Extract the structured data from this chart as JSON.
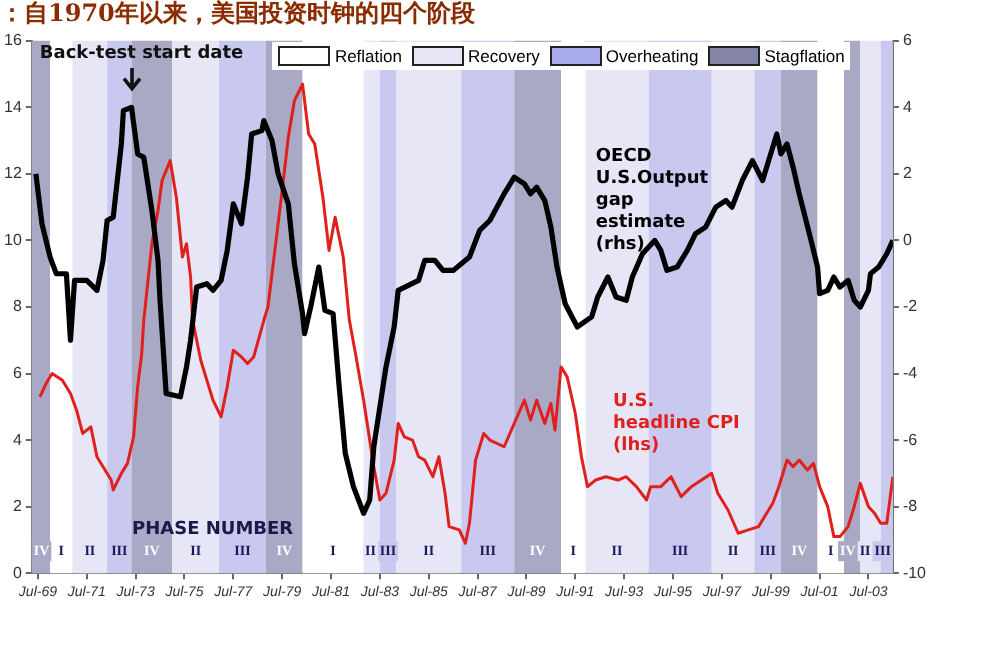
{
  "chart_data": {
    "type": "line",
    "title": "：自1970年以来，美国投资时钟的四个阶段",
    "xlim": [
      "1969-04",
      "2004-07"
    ],
    "xticks": [
      {
        "value": "1969-07",
        "label": "Jul-69"
      },
      {
        "value": "1971-07",
        "label": "Jul-71"
      },
      {
        "value": "1973-07",
        "label": "Jul-73"
      },
      {
        "value": "1975-07",
        "label": "Jul-75"
      },
      {
        "value": "1977-07",
        "label": "Jul-77"
      },
      {
        "value": "1979-07",
        "label": "Jul-79"
      },
      {
        "value": "1981-07",
        "label": "Jul-81"
      },
      {
        "value": "1983-07",
        "label": "Jul-83"
      },
      {
        "value": "1985-07",
        "label": "Jul-85"
      },
      {
        "value": "1987-07",
        "label": "Jul-87"
      },
      {
        "value": "1989-07",
        "label": "Jul-89"
      },
      {
        "value": "1991-07",
        "label": "Jul-91"
      },
      {
        "value": "1993-07",
        "label": "Jul-93"
      },
      {
        "value": "1995-07",
        "label": "Jul-95"
      },
      {
        "value": "1997-07",
        "label": "Jul-97"
      },
      {
        "value": "1999-07",
        "label": "Jul-99"
      },
      {
        "value": "2001-07",
        "label": "Jul-01"
      },
      {
        "value": "2003-07",
        "label": "Jul-03"
      }
    ],
    "ylim": [
      0,
      16
    ],
    "yticks": [
      0,
      2,
      4,
      6,
      8,
      10,
      12,
      14,
      16
    ],
    "y2lim": [
      -10,
      6
    ],
    "y2ticks": [
      -10,
      -8,
      -6,
      -4,
      -2,
      0,
      2,
      4,
      6
    ],
    "series": [
      {
        "name": "OECD U.S.Output gap estimate (rhs)",
        "color": "#000000",
        "axis": "y2",
        "x": [
          "1969-06",
          "1969-09",
          "1970-01",
          "1970-04",
          "1970-09",
          "1970-11",
          "1971-01",
          "1971-07",
          "1971-12",
          "1972-03",
          "1972-05",
          "1972-08",
          "1972-12",
          "1973-01",
          "1973-05",
          "1973-08",
          "1973-11",
          "1974-03",
          "1974-06",
          "1974-07",
          "1974-10",
          "1975-05",
          "1975-08",
          "1975-10",
          "1976-01",
          "1976-06",
          "1976-09",
          "1977-01",
          "1977-04",
          "1977-07",
          "1977-11",
          "1978-02",
          "1978-04",
          "1978-09",
          "1978-10",
          "1979-02",
          "1979-05",
          "1979-10",
          "1980-01",
          "1980-05",
          "1980-06",
          "1980-09",
          "1981-01",
          "1981-04",
          "1981-08",
          "1981-11",
          "1982-02",
          "1982-06",
          "1982-11",
          "1983-02",
          "1983-04",
          "1983-07",
          "1983-10",
          "1984-02",
          "1984-04",
          "1985-02",
          "1985-05",
          "1985-10",
          "1986-02",
          "1986-07",
          "1987-03",
          "1987-08",
          "1988-01",
          "1988-08",
          "1989-01",
          "1989-06",
          "1989-09",
          "1989-12",
          "1990-04",
          "1990-07",
          "1990-10",
          "1991-02",
          "1991-08",
          "1992-03",
          "1992-06",
          "1992-11",
          "1993-03",
          "1993-08",
          "1993-11",
          "1994-04",
          "1994-10",
          "1995-01",
          "1995-04",
          "1995-09",
          "1996-02",
          "1996-06",
          "1996-11",
          "1997-04",
          "1997-09",
          "1997-12",
          "1998-05",
          "1998-10",
          "1999-03",
          "1999-06",
          "1999-10",
          "1999-12",
          "2000-03",
          "2000-06",
          "2000-09",
          "2001-02",
          "2001-06",
          "2001-07",
          "2001-11",
          "2002-02",
          "2002-05",
          "2002-09",
          "2002-12",
          "2003-03",
          "2003-07",
          "2003-08",
          "2003-12",
          "2004-04",
          "2004-07"
        ],
        "values": [
          2.0,
          0.5,
          -0.5,
          -1.0,
          -1.0,
          -3.0,
          -1.2,
          -1.2,
          -1.5,
          -0.6,
          0.6,
          0.7,
          2.9,
          3.9,
          4.0,
          2.6,
          2.5,
          0.9,
          -0.6,
          -1.8,
          -4.6,
          -4.7,
          -3.8,
          -3.0,
          -1.4,
          -1.3,
          -1.5,
          -1.2,
          -0.3,
          1.1,
          0.5,
          1.9,
          3.2,
          3.3,
          3.6,
          3.0,
          2.0,
          1.1,
          -0.7,
          -2.2,
          -2.8,
          -2.0,
          -0.8,
          -2.1,
          -2.2,
          -4.4,
          -6.4,
          -7.4,
          -8.2,
          -7.8,
          -6.2,
          -5.0,
          -3.8,
          -2.6,
          -1.5,
          -1.2,
          -0.6,
          -0.6,
          -0.9,
          -0.9,
          -0.5,
          0.3,
          0.6,
          1.4,
          1.9,
          1.7,
          1.4,
          1.6,
          1.2,
          0.4,
          -0.8,
          -1.9,
          -2.6,
          -2.3,
          -1.7,
          -1.1,
          -1.7,
          -1.8,
          -1.1,
          -0.4,
          0.0,
          -0.3,
          -0.9,
          -0.8,
          -0.3,
          0.2,
          0.4,
          1.0,
          1.2,
          1.0,
          1.8,
          2.4,
          1.8,
          2.4,
          3.2,
          2.6,
          2.9,
          2.2,
          1.4,
          0.2,
          -0.8,
          -1.6,
          -1.5,
          -1.1,
          -1.4,
          -1.2,
          -1.8,
          -2.0,
          -1.5,
          -1.0,
          -0.8,
          -0.4,
          0.0
        ]
      },
      {
        "name": "U.S. headline CPI (lhs)",
        "color": "#e0201c",
        "x": [
          "1969-08",
          "1969-11",
          "1970-02",
          "1970-07",
          "1970-11",
          "1971-02",
          "1971-05",
          "1971-09",
          "1971-12",
          "1972-03",
          "1972-07",
          "1972-08",
          "1972-12",
          "1973-03",
          "1973-06",
          "1973-08",
          "1973-10",
          "1973-11",
          "1974-03",
          "1974-06",
          "1974-08",
          "1974-12",
          "1975-03",
          "1975-06",
          "1975-08",
          "1975-10",
          "1975-11",
          "1976-03",
          "1976-06",
          "1976-09",
          "1977-01",
          "1977-04",
          "1977-07",
          "1977-11",
          "1978-02",
          "1978-05",
          "1978-10",
          "1978-12",
          "1979-03",
          "1979-07",
          "1979-10",
          "1980-01",
          "1980-05",
          "1980-08",
          "1980-11",
          "1981-03",
          "1981-06",
          "1981-09",
          "1982-01",
          "1982-04",
          "1982-07",
          "1982-11",
          "1983-02",
          "1983-04",
          "1983-07",
          "1983-10",
          "1984-02",
          "1984-04",
          "1984-07",
          "1984-11",
          "1985-02",
          "1985-05",
          "1985-09",
          "1985-12",
          "1986-03",
          "1986-05",
          "1986-10",
          "1987-01",
          "1987-03",
          "1987-06",
          "1987-10",
          "1988-01",
          "1988-08",
          "1989-01",
          "1989-06",
          "1989-09",
          "1989-12",
          "1990-04",
          "1990-07",
          "1990-09",
          "1990-12",
          "1991-03",
          "1991-07",
          "1991-10",
          "1992-01",
          "1992-05",
          "1992-10",
          "1993-04",
          "1993-08",
          "1994-01",
          "1994-06",
          "1994-08",
          "1995-01",
          "1995-06",
          "1995-11",
          "1996-04",
          "1996-09",
          "1997-02",
          "1997-05",
          "1997-10",
          "1998-03",
          "1998-08",
          "1999-01",
          "1999-05",
          "1999-08",
          "1999-11",
          "2000-03",
          "2000-06",
          "2000-09",
          "2001-01",
          "2001-04",
          "2001-07",
          "2001-11",
          "2002-02",
          "2002-05",
          "2002-09",
          "2002-12",
          "2003-03",
          "2003-07",
          "2003-10",
          "2004-01",
          "2004-04",
          "2004-07"
        ],
        "values": [
          5.3,
          5.7,
          6.0,
          5.8,
          5.4,
          4.9,
          4.2,
          4.4,
          3.5,
          3.2,
          2.8,
          2.5,
          3.0,
          3.3,
          4.1,
          5.6,
          6.6,
          7.6,
          9.9,
          10.9,
          11.8,
          12.4,
          11.3,
          9.5,
          9.9,
          8.9,
          7.6,
          6.4,
          5.8,
          5.2,
          4.7,
          5.6,
          6.7,
          6.5,
          6.3,
          6.5,
          7.6,
          8.0,
          9.5,
          11.5,
          13.1,
          14.2,
          14.7,
          13.2,
          12.9,
          11.3,
          9.7,
          10.7,
          9.5,
          7.6,
          6.6,
          5.2,
          4.0,
          3.2,
          2.2,
          2.4,
          3.4,
          4.5,
          4.1,
          4.0,
          3.5,
          3.4,
          2.9,
          3.5,
          2.4,
          1.4,
          1.3,
          0.9,
          1.5,
          3.4,
          4.2,
          4.0,
          3.8,
          4.5,
          5.2,
          4.6,
          5.2,
          4.5,
          5.1,
          4.3,
          6.2,
          5.9,
          4.8,
          3.5,
          2.6,
          2.8,
          2.9,
          2.8,
          2.9,
          2.6,
          2.2,
          2.6,
          2.6,
          2.9,
          2.3,
          2.6,
          2.8,
          3.0,
          2.4,
          1.9,
          1.2,
          1.3,
          1.4,
          1.8,
          2.1,
          2.6,
          3.4,
          3.2,
          3.4,
          3.1,
          3.3,
          2.6,
          2.0,
          1.1,
          1.1,
          1.4,
          2.0,
          2.7,
          2.0,
          1.8,
          1.5,
          1.5,
          2.9
        ]
      }
    ],
    "bands": [
      {
        "axis": "x",
        "from": "1969-04",
        "to": "1970-01",
        "label": "IV",
        "color": "#a9a9c6"
      },
      {
        "axis": "x",
        "from": "1970-01",
        "to": "1970-12",
        "label": "I",
        "color": "#ffffff"
      },
      {
        "axis": "x",
        "from": "1970-12",
        "to": "1972-05",
        "label": "II",
        "color": "#e6e6f7"
      },
      {
        "axis": "x",
        "from": "1972-05",
        "to": "1973-05",
        "label": "III",
        "color": "#c9c9ef"
      },
      {
        "axis": "x",
        "from": "1973-05",
        "to": "1975-01",
        "label": "IV",
        "color": "#a9a9c6"
      },
      {
        "axis": "x",
        "from": "1975-01",
        "to": "1976-12",
        "label": "II",
        "color": "#e6e6f7"
      },
      {
        "axis": "x",
        "from": "1976-12",
        "to": "1978-11",
        "label": "III",
        "color": "#c9c9ef"
      },
      {
        "axis": "x",
        "from": "1978-11",
        "to": "1980-05",
        "label": "IV",
        "color": "#a9a9c6"
      },
      {
        "axis": "x",
        "from": "1980-05",
        "to": "1982-11",
        "label": "I",
        "color": "#ffffff"
      },
      {
        "axis": "x",
        "from": "1982-11",
        "to": "1983-07",
        "label": "II",
        "color": "#e6e6f7"
      },
      {
        "axis": "x",
        "from": "1983-07",
        "to": "1984-03",
        "label": "III",
        "color": "#c9c9ef"
      },
      {
        "axis": "x",
        "from": "1984-03",
        "to": "1986-11",
        "label": "II",
        "color": "#e6e6f7"
      },
      {
        "axis": "x",
        "from": "1986-11",
        "to": "1989-01",
        "label": "III",
        "color": "#c9c9ef"
      },
      {
        "axis": "x",
        "from": "1989-01",
        "to": "1990-12",
        "label": "IV",
        "color": "#a9a9c6"
      },
      {
        "axis": "x",
        "from": "1990-12",
        "to": "1991-12",
        "label": "I",
        "color": "#ffffff"
      },
      {
        "axis": "x",
        "from": "1991-12",
        "to": "1994-07",
        "label": "II",
        "color": "#e6e6f7"
      },
      {
        "axis": "x",
        "from": "1994-07",
        "to": "1997-02",
        "label": "III",
        "color": "#c9c9ef"
      },
      {
        "axis": "x",
        "from": "1997-02",
        "to": "1998-11",
        "label": "II",
        "color": "#e6e6f7"
      },
      {
        "axis": "x",
        "from": "1998-11",
        "to": "1999-12",
        "label": "III",
        "color": "#c9c9ef"
      },
      {
        "axis": "x",
        "from": "1999-12",
        "to": "2001-06",
        "label": "IV",
        "color": "#a9a9c6"
      },
      {
        "axis": "x",
        "from": "2001-06",
        "to": "2002-07",
        "label": "I",
        "color": "#ffffff"
      },
      {
        "axis": "x",
        "from": "2002-07",
        "to": "2003-03",
        "label": "IV",
        "color": "#a9a9c6"
      },
      {
        "axis": "x",
        "from": "2003-03",
        "to": "2004-01",
        "label": "II",
        "color": "#e6e6f7"
      },
      {
        "axis": "x",
        "from": "2004-01",
        "to": "2004-07",
        "label": "III",
        "color": "#c9c9ef"
      }
    ],
    "annotations": [
      {
        "text": "Back-test start date",
        "x": "1973-05",
        "y": 14.3
      },
      "PHASE NUMBER",
      "Reflation",
      "Recovery",
      "Overheating",
      "Stagflation"
    ]
  }
}
